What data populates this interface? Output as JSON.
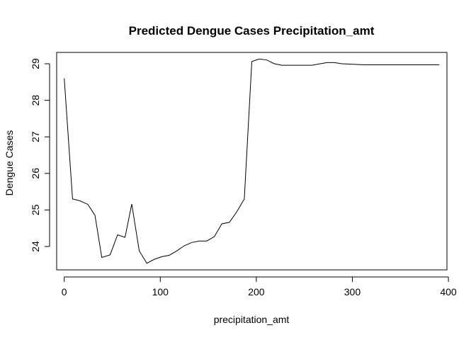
{
  "chart_data": {
    "type": "line",
    "title": "Predicted Dengue Cases Precipitation_amt",
    "xlabel": "precipitation_amt",
    "ylabel": "Dengue Cases",
    "xlim": [
      -7.9,
      398.5
    ],
    "ylim": [
      23.36,
      29.31
    ],
    "xticks": [
      0,
      100,
      200,
      300,
      400
    ],
    "yticks": [
      24,
      25,
      26,
      27,
      28,
      29
    ],
    "grid": false,
    "line_color": "#000000",
    "series": [
      {
        "x": [
          0,
          8.6,
          16.4,
          24.6,
          32.0,
          39.1,
          47.7,
          55.5,
          63.3,
          70.3,
          78.1,
          86.0,
          93.8,
          101.6,
          109.4,
          117.2,
          125.0,
          132.8,
          140.6,
          148.4,
          156.3,
          164.1,
          171.9,
          179.7,
          187.5,
          195.3,
          203.1,
          210.9,
          218.8,
          226.6,
          234.4,
          242.2,
          257.8,
          273.4,
          281.3,
          289.1,
          304.7,
          312.5,
          390.6
        ],
        "values": [
          28.6,
          25.3,
          25.25,
          25.15,
          24.85,
          23.7,
          23.77,
          24.32,
          24.25,
          25.16,
          23.88,
          23.54,
          23.65,
          23.72,
          23.76,
          23.88,
          24.02,
          24.11,
          24.15,
          24.15,
          24.27,
          24.62,
          24.66,
          24.95,
          25.3,
          29.06,
          29.13,
          29.1,
          29.0,
          28.96,
          28.96,
          28.96,
          28.96,
          29.03,
          29.03,
          29.0,
          28.98,
          28.97,
          28.97
        ]
      }
    ]
  }
}
